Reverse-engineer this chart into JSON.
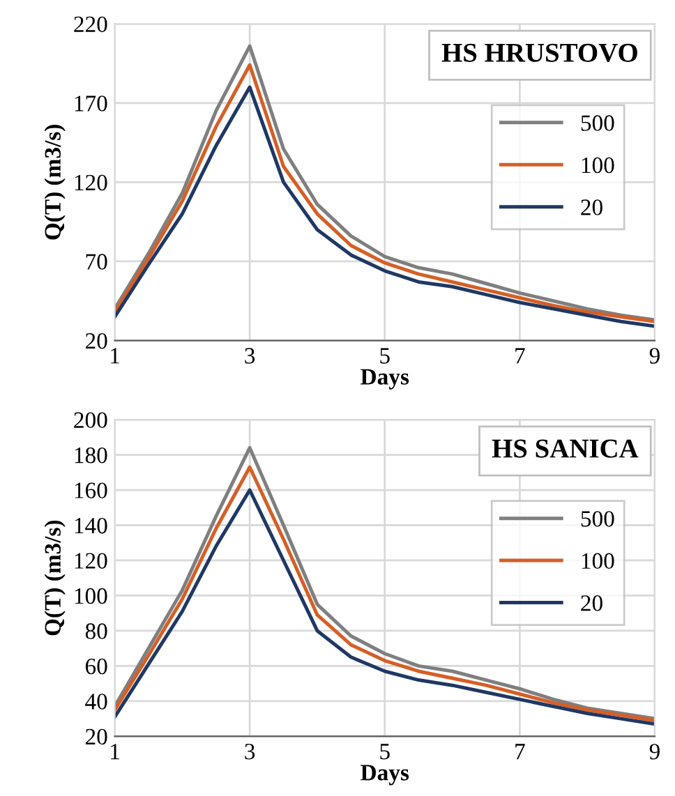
{
  "chart_data": [
    {
      "type": "line",
      "title": "HS HRUSTOVO",
      "xlabel": "Days",
      "ylabel": "Q(T) (m3/s)",
      "x": [
        1,
        1.5,
        2,
        2.5,
        3,
        3.5,
        4,
        4.5,
        5,
        5.5,
        6,
        6.5,
        7,
        7.5,
        8,
        8.5,
        9
      ],
      "series": [
        {
          "name": "500",
          "color": "#7f7f7f",
          "values": [
            40,
            75,
            113,
            165,
            206,
            141,
            106,
            86,
            73,
            66,
            62,
            56,
            50,
            45,
            40,
            36,
            33
          ]
        },
        {
          "name": "100",
          "color": "#d55f26",
          "values": [
            38,
            72,
            108,
            155,
            194,
            130,
            100,
            80,
            69,
            62,
            57,
            52,
            47,
            42,
            38,
            35,
            32
          ]
        },
        {
          "name": "20",
          "color": "#1f3864",
          "values": [
            35,
            68,
            100,
            143,
            180,
            120,
            90,
            74,
            64,
            57,
            54,
            49,
            44,
            40,
            36,
            32,
            29
          ]
        }
      ],
      "xlim": [
        1,
        9
      ],
      "xticks": [
        1,
        3,
        5,
        7,
        9
      ],
      "ylim": [
        20,
        220
      ],
      "yticks": [
        20,
        70,
        120,
        170,
        220
      ],
      "grid": true,
      "legend": "top right",
      "line_style": "solid",
      "marker": "none"
    },
    {
      "type": "line",
      "title": "HS SANICA",
      "xlabel": "Days",
      "ylabel": "Q(T) (m3/s)",
      "x": [
        1,
        1.5,
        2,
        2.5,
        3,
        3.5,
        4,
        4.5,
        5,
        5.5,
        6,
        6.5,
        7,
        7.5,
        8,
        8.5,
        9
      ],
      "series": [
        {
          "name": "500",
          "color": "#7f7f7f",
          "values": [
            37,
            70,
            103,
            145,
            184,
            140,
            95,
            77,
            67,
            60,
            57,
            52,
            47,
            41,
            36,
            33,
            30
          ]
        },
        {
          "name": "100",
          "color": "#d55f26",
          "values": [
            35,
            66,
            98,
            138,
            173,
            132,
            89,
            72,
            63,
            57,
            53,
            49,
            44,
            39,
            35,
            32,
            29
          ]
        },
        {
          "name": "20",
          "color": "#1f3864",
          "values": [
            31,
            61,
            91,
            128,
            160,
            120,
            80,
            65,
            57,
            52,
            49,
            45,
            41,
            37,
            33,
            30,
            27
          ]
        }
      ],
      "xlim": [
        1,
        9
      ],
      "xticks": [
        1,
        3,
        5,
        7,
        9
      ],
      "ylim": [
        20,
        200
      ],
      "yticks": [
        20,
        40,
        60,
        80,
        100,
        120,
        140,
        160,
        180,
        200
      ],
      "grid": true,
      "legend": "top right",
      "line_style": "solid",
      "marker": "none"
    }
  ]
}
